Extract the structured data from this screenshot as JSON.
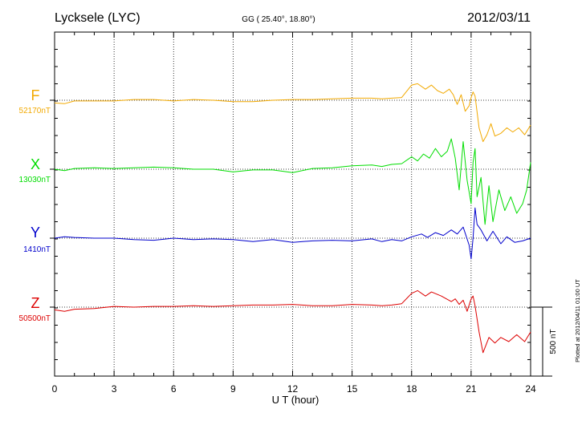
{
  "header": {
    "station": "Lycksele (LYC)",
    "coords": "GG ( 25.40°,  18.80°)",
    "date": "2012/03/11"
  },
  "footer": {
    "plotted": "Plotted at 2012/04/11 01:00 UT"
  },
  "scale_bar": {
    "label": "500 nT",
    "value_nT": 500
  },
  "colors": {
    "F": "#f2a900",
    "X": "#00dd00",
    "Y": "#0000cc",
    "Z": "#dd0000",
    "axis": "#000000"
  },
  "chart_data": {
    "type": "line",
    "xlabel": "U T (hour)",
    "xlim": [
      0,
      24
    ],
    "x_ticks": [
      0,
      3,
      6,
      9,
      12,
      15,
      18,
      21,
      24
    ],
    "grid": true,
    "panel_range_nT": [
      -450,
      450
    ],
    "series": [
      {
        "name": "F",
        "baseline_label": "52170nT",
        "color": "#f2a900",
        "x": [
          0,
          0.5,
          1,
          2,
          3,
          4,
          5,
          6,
          7,
          8,
          9,
          10,
          11,
          12,
          13,
          14,
          15,
          16,
          16.5,
          17,
          17.5,
          18,
          18.3,
          18.7,
          19,
          19.3,
          19.6,
          19.9,
          20.1,
          20.3,
          20.5,
          20.7,
          20.9,
          21.0,
          21.1,
          21.2,
          21.4,
          21.6,
          21.8,
          22.0,
          22.2,
          22.5,
          22.8,
          23.1,
          23.4,
          23.7,
          24
        ],
        "y": [
          -20,
          -25,
          -5,
          -5,
          -5,
          5,
          5,
          -5,
          5,
          0,
          -10,
          -10,
          0,
          5,
          5,
          10,
          15,
          15,
          10,
          15,
          20,
          110,
          120,
          80,
          110,
          70,
          50,
          80,
          40,
          -30,
          40,
          -80,
          -40,
          20,
          60,
          30,
          -200,
          -300,
          -250,
          -170,
          -260,
          -240,
          -200,
          -230,
          -200,
          -250,
          -180
        ]
      },
      {
        "name": "X",
        "baseline_label": "13030nT",
        "color": "#00dd00",
        "x": [
          0,
          0.5,
          1,
          2,
          3,
          4,
          5,
          6,
          7,
          8,
          9,
          10,
          11,
          12,
          13,
          14,
          15,
          16,
          16.5,
          17,
          17.5,
          18,
          18.3,
          18.6,
          18.9,
          19.2,
          19.5,
          19.8,
          20.0,
          20.2,
          20.4,
          20.6,
          20.8,
          21.0,
          21.1,
          21.2,
          21.3,
          21.5,
          21.7,
          21.9,
          22.1,
          22.4,
          22.7,
          23.0,
          23.3,
          23.6,
          23.8,
          24
        ],
        "y": [
          0,
          -10,
          5,
          10,
          5,
          10,
          15,
          10,
          0,
          0,
          -20,
          -5,
          -5,
          -25,
          5,
          10,
          25,
          30,
          20,
          35,
          40,
          90,
          60,
          110,
          80,
          150,
          90,
          130,
          220,
          80,
          -150,
          200,
          -80,
          -250,
          50,
          150,
          -200,
          -60,
          -400,
          -120,
          -380,
          -150,
          -300,
          -200,
          -320,
          -250,
          -150,
          50
        ]
      },
      {
        "name": "Y",
        "baseline_label": "1410nT",
        "color": "#0000cc",
        "x": [
          0,
          0.5,
          1,
          2,
          3,
          4,
          5,
          6,
          7,
          8,
          9,
          10,
          11,
          12,
          13,
          14,
          15,
          16,
          16.5,
          17,
          17.5,
          18,
          18.5,
          18.8,
          19.2,
          19.6,
          20.0,
          20.3,
          20.6,
          20.9,
          21.0,
          21.1,
          21.2,
          21.3,
          21.5,
          21.8,
          22.1,
          22.5,
          22.8,
          23.2,
          23.6,
          24
        ],
        "y": [
          0,
          10,
          5,
          0,
          0,
          -10,
          -15,
          0,
          -10,
          -5,
          -10,
          -25,
          -10,
          -30,
          -20,
          -15,
          -20,
          -5,
          -25,
          -10,
          -20,
          10,
          30,
          5,
          40,
          20,
          60,
          30,
          80,
          -50,
          -150,
          0,
          220,
          100,
          60,
          -20,
          50,
          -40,
          10,
          -30,
          -20,
          0
        ]
      },
      {
        "name": "Z",
        "baseline_label": "50500nT",
        "color": "#dd0000",
        "x": [
          0,
          0.5,
          1,
          2,
          3,
          4,
          5,
          6,
          7,
          8,
          9,
          10,
          11,
          12,
          13,
          14,
          15,
          16,
          16.5,
          17,
          17.5,
          18,
          18.3,
          18.7,
          19.0,
          19.5,
          20.0,
          20.2,
          20.4,
          20.6,
          20.8,
          21.0,
          21.1,
          21.2,
          21.4,
          21.6,
          21.9,
          22.2,
          22.5,
          22.9,
          23.3,
          23.7,
          24
        ],
        "y": [
          -20,
          -30,
          -15,
          -10,
          5,
          0,
          5,
          5,
          10,
          5,
          10,
          15,
          15,
          20,
          10,
          10,
          20,
          15,
          10,
          15,
          25,
          100,
          120,
          80,
          110,
          80,
          40,
          60,
          20,
          50,
          -30,
          60,
          80,
          10,
          -180,
          -330,
          -220,
          -260,
          -220,
          -250,
          -200,
          -250,
          -180
        ]
      }
    ]
  }
}
